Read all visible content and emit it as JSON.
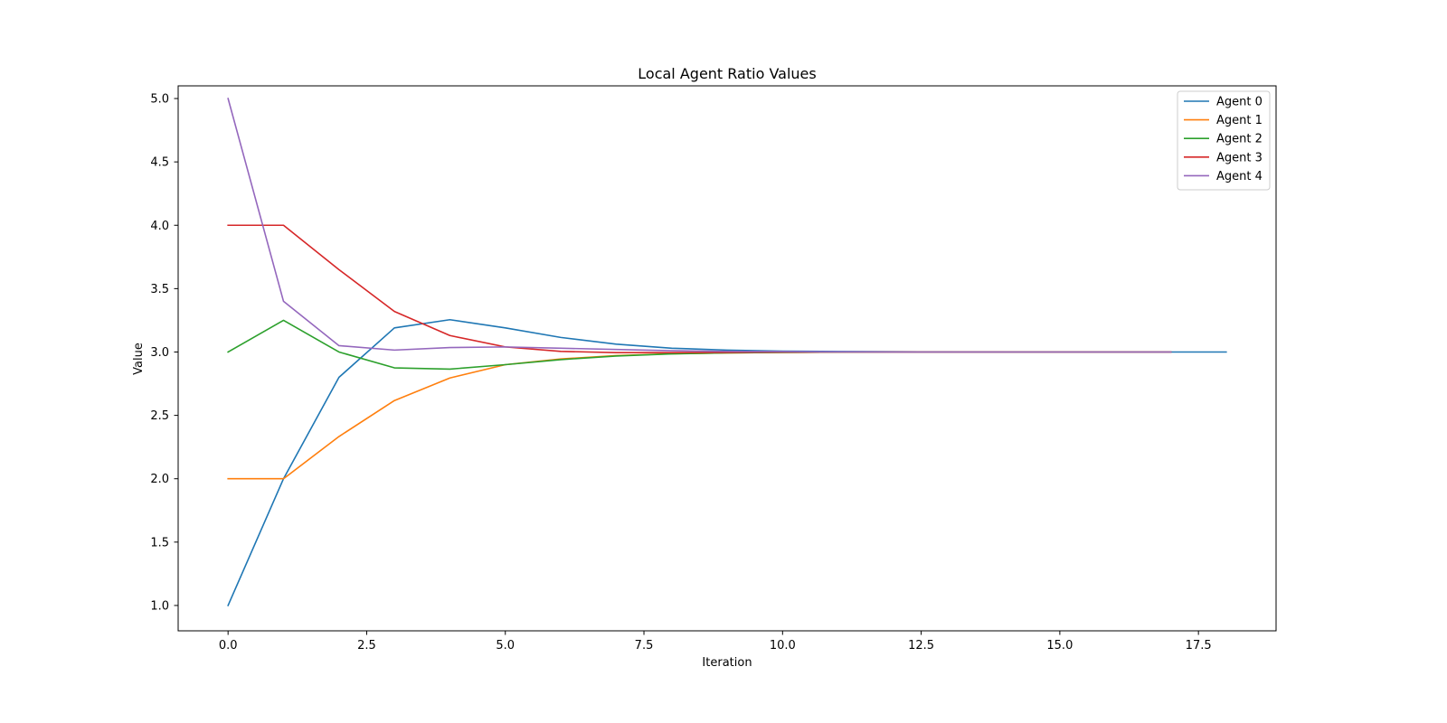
{
  "chart_data": {
    "type": "line",
    "title": "Local Agent Ratio Values",
    "xlabel": "Iteration",
    "ylabel": "Value",
    "xlim": [
      -0.9,
      18.9
    ],
    "ylim": [
      0.8,
      5.1
    ],
    "xticks": [
      0.0,
      2.5,
      5.0,
      7.5,
      10.0,
      12.5,
      15.0,
      17.5
    ],
    "xtick_labels": [
      "0.0",
      "2.5",
      "5.0",
      "7.5",
      "10.0",
      "12.5",
      "15.0",
      "17.5"
    ],
    "yticks": [
      1.0,
      1.5,
      2.0,
      2.5,
      3.0,
      3.5,
      4.0,
      4.5,
      5.0
    ],
    "ytick_labels": [
      "1.0",
      "1.5",
      "2.0",
      "2.5",
      "3.0",
      "3.5",
      "4.0",
      "4.5",
      "5.0"
    ],
    "grid": false,
    "legend_position": "top-right",
    "series": [
      {
        "name": "Agent 0",
        "color": "#1f77b4",
        "x": [
          0,
          1,
          2,
          3,
          4,
          5,
          6,
          7,
          8,
          9,
          10,
          11,
          12,
          13,
          14,
          15,
          16,
          17,
          18
        ],
        "y": [
          1.0,
          2.0,
          2.8,
          3.19,
          3.255,
          3.19,
          3.115,
          3.062,
          3.03,
          3.015,
          3.007,
          3.004,
          3.002,
          3.001,
          3.0,
          3.0,
          3.0,
          3.0,
          3.0
        ]
      },
      {
        "name": "Agent 1",
        "color": "#ff7f0e",
        "x": [
          0,
          1,
          2,
          3,
          4,
          5,
          6,
          7,
          8,
          9,
          10,
          11,
          12,
          13,
          14,
          15,
          16,
          17
        ],
        "y": [
          2.0,
          2.0,
          2.333,
          2.617,
          2.795,
          2.9,
          2.945,
          2.972,
          2.986,
          2.993,
          2.997,
          2.999,
          3.0,
          3.0,
          3.0,
          3.0,
          3.0,
          3.0
        ]
      },
      {
        "name": "Agent 2",
        "color": "#2ca02c",
        "x": [
          0,
          1,
          2,
          3,
          4,
          5,
          6,
          7,
          8,
          9,
          10,
          11,
          12,
          13,
          14,
          15,
          16,
          17
        ],
        "y": [
          3.0,
          3.25,
          3.0,
          2.875,
          2.865,
          2.9,
          2.94,
          2.968,
          2.985,
          2.993,
          2.997,
          2.999,
          3.0,
          3.0,
          3.0,
          3.0,
          3.0,
          3.0
        ]
      },
      {
        "name": "Agent 3",
        "color": "#d62728",
        "x": [
          0,
          1,
          2,
          3,
          4,
          5,
          6,
          7,
          8,
          9,
          10,
          11,
          12,
          13,
          14,
          15,
          16,
          17
        ],
        "y": [
          4.0,
          4.0,
          3.65,
          3.32,
          3.13,
          3.04,
          3.005,
          2.995,
          2.995,
          2.997,
          2.999,
          3.0,
          3.0,
          3.0,
          3.0,
          3.0,
          3.0,
          3.0
        ]
      },
      {
        "name": "Agent 4",
        "color": "#9467bd",
        "x": [
          0,
          1,
          2,
          3,
          4,
          5,
          6,
          7,
          8,
          9,
          10,
          11,
          12,
          13,
          14,
          15,
          16,
          17
        ],
        "y": [
          5.0,
          3.4,
          3.05,
          3.015,
          3.035,
          3.04,
          3.03,
          3.02,
          3.01,
          3.005,
          3.003,
          3.001,
          3.0,
          3.0,
          3.0,
          3.0,
          3.0,
          3.0
        ]
      }
    ]
  }
}
